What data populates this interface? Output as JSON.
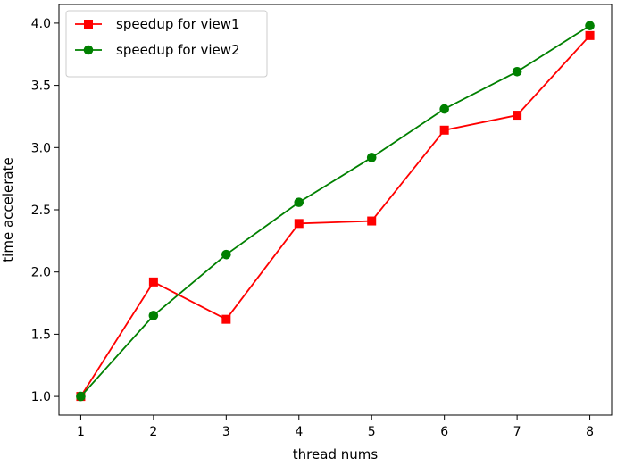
{
  "chart_data": {
    "type": "line",
    "x": [
      1,
      2,
      3,
      4,
      5,
      6,
      7,
      8
    ],
    "series": [
      {
        "name": "speedup for view1",
        "color": "#ff0000",
        "marker": "square",
        "values": [
          1.0,
          1.92,
          1.62,
          2.39,
          2.41,
          3.14,
          3.26,
          3.9
        ]
      },
      {
        "name": "speedup for view2",
        "color": "#008000",
        "marker": "circle",
        "values": [
          1.0,
          1.65,
          2.14,
          2.56,
          2.92,
          3.31,
          3.61,
          3.98
        ]
      }
    ],
    "xlabel": "thread nums",
    "ylabel": "time accelerate",
    "xlim": [
      0.7,
      8.3
    ],
    "ylim": [
      0.85,
      4.15
    ],
    "xticks": [
      "1",
      "2",
      "3",
      "4",
      "5",
      "6",
      "7",
      "8"
    ],
    "yticks": [
      "1.0",
      "1.5",
      "2.0",
      "2.5",
      "3.0",
      "3.5",
      "4.0"
    ],
    "grid": false,
    "legend_position": "top-left"
  }
}
